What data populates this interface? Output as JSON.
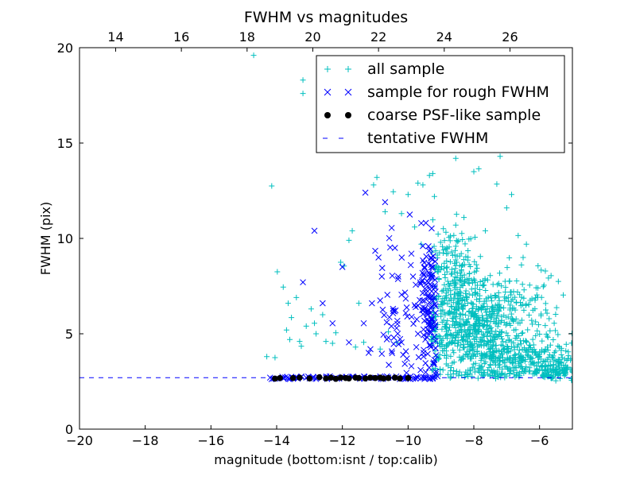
{
  "chart_data": {
    "type": "scatter",
    "title": "FWHM vs magnitudes",
    "xlabel": "magnitude (bottom:isnt / top:calib)",
    "ylabel": "FWHM (pix)",
    "xlim": [
      -20,
      -5
    ],
    "ylim": [
      0,
      20
    ],
    "x_ticks": [
      -20,
      -18,
      -16,
      -14,
      -12,
      -10,
      -8,
      -6
    ],
    "x_tick_labels": [
      "−20",
      "−18",
      "−16",
      "−14",
      "−12",
      "−10",
      "−8",
      "−6"
    ],
    "y_ticks": [
      0,
      5,
      10,
      15,
      20
    ],
    "y_tick_labels": [
      "0",
      "5",
      "10",
      "15",
      "20"
    ],
    "top_axis": {
      "xlim": [
        12.9,
        27.9
      ],
      "ticks": [
        14,
        16,
        18,
        20,
        22,
        24,
        26
      ],
      "tick_labels": [
        "14",
        "16",
        "18",
        "20",
        "22",
        "24",
        "26"
      ]
    },
    "grid": false,
    "legend_position": "top-right",
    "series": [
      {
        "name": "all sample",
        "marker": "plus",
        "color": "#00bfbf",
        "points": [
          [
            -14.7,
            19.6
          ],
          [
            -14.15,
            12.75
          ],
          [
            -13.2,
            18.3
          ],
          [
            -13.2,
            17.6
          ],
          [
            -13.98,
            8.25
          ],
          [
            -13.8,
            7.45
          ],
          [
            -13.65,
            6.6
          ],
          [
            -13.55,
            5.85
          ],
          [
            -13.7,
            5.2
          ],
          [
            -13.6,
            4.7
          ],
          [
            -13.4,
            6.9
          ],
          [
            -13.3,
            4.6
          ],
          [
            -13.25,
            4.35
          ],
          [
            -13.1,
            5.4
          ],
          [
            -12.95,
            6.3
          ],
          [
            -12.85,
            5.55
          ],
          [
            -12.6,
            6.0
          ],
          [
            -12.5,
            4.6
          ],
          [
            -12.2,
            5.05
          ],
          [
            -14.05,
            3.75
          ],
          [
            -14.3,
            3.8
          ],
          [
            -11.5,
            6.6
          ],
          [
            -11.35,
            4.55
          ],
          [
            -11.05,
            12.8
          ],
          [
            -10.95,
            13.2
          ],
          [
            -10.7,
            11.4
          ],
          [
            -10.45,
            12.45
          ],
          [
            -10.2,
            11.3
          ],
          [
            -10.0,
            12.3
          ],
          [
            -9.7,
            12.9
          ],
          [
            -9.55,
            12.8
          ],
          [
            -9.35,
            13.3
          ],
          [
            -9.25,
            13.4
          ],
          [
            -9.2,
            12.2
          ],
          [
            -9.8,
            10.6
          ],
          [
            -9.6,
            9.7
          ],
          [
            -11.7,
            10.4
          ],
          [
            -11.8,
            9.9
          ],
          [
            -11.95,
            8.55
          ],
          [
            -12.05,
            8.75
          ],
          [
            -10.6,
            5.1
          ],
          [
            -10.35,
            4.55
          ],
          [
            -12.3,
            4.5
          ],
          [
            -12.8,
            5.0
          ],
          [
            -11.6,
            4.3
          ],
          [
            -10.85,
            4.2
          ],
          [
            -7.6,
            18.2
          ],
          [
            -7.45,
            15.2
          ],
          [
            -7.2,
            14.3
          ],
          [
            -6.85,
            12.3
          ],
          [
            -7.85,
            13.65
          ],
          [
            -7.0,
            11.6
          ],
          [
            -6.65,
            10.15
          ],
          [
            -8.55,
            14.2
          ],
          [
            -8.0,
            13.5
          ],
          [
            -7.3,
            12.85
          ],
          [
            -6.3,
            7.55
          ],
          [
            -6.4,
            9.7
          ],
          [
            -6.05,
            7.4
          ],
          [
            -5.4,
            4.3
          ],
          [
            -5.2,
            4.1
          ],
          [
            -5.05,
            3.7
          ],
          [
            -5.6,
            3.75
          ],
          [
            -6.5,
            9.0
          ],
          [
            -8.3,
            11.1
          ],
          [
            -7.65,
            10.4
          ],
          [
            -8.9,
            8.7
          ],
          [
            -8.75,
            9.55
          ],
          [
            -8.55,
            10.7
          ],
          [
            -7.5,
            8.05
          ],
          [
            -7.8,
            9.05
          ],
          [
            -6.95,
            6.7
          ],
          [
            -6.7,
            4.9
          ]
        ],
        "dense_cluster_note": "",
        "dense_clusters": [
          {
            "cx": -8.0,
            "cy": 4.8,
            "sx": 0.75,
            "sy": 1.4,
            "n": 480,
            "seed": 11
          },
          {
            "cx": -6.7,
            "cy": 3.6,
            "sx": 0.95,
            "sy": 0.6,
            "n": 260,
            "seed": 23
          },
          {
            "cx": -8.7,
            "cy": 7.4,
            "sx": 0.35,
            "sy": 1.5,
            "n": 170,
            "seed": 37
          },
          {
            "cx": -7.1,
            "cy": 6.2,
            "sx": 0.8,
            "sy": 1.3,
            "n": 140,
            "seed": 41
          },
          {
            "cx": -5.6,
            "cy": 2.9,
            "sx": 0.4,
            "sy": 0.35,
            "n": 120,
            "seed": 53
          },
          {
            "cx": -7.5,
            "cy": 2.85,
            "sx": 1.0,
            "sy": 0.2,
            "n": 90,
            "seed": 61
          }
        ]
      },
      {
        "name": "sample for rough FWHM",
        "marker": "x",
        "color": "#0000ff",
        "points": [
          [
            -13.2,
            7.7
          ],
          [
            -12.85,
            10.4
          ],
          [
            -12.6,
            6.6
          ],
          [
            -12.3,
            5.55
          ],
          [
            -12.0,
            8.5
          ],
          [
            -11.8,
            4.55
          ],
          [
            -11.3,
            12.4
          ],
          [
            -11.35,
            5.55
          ],
          [
            -11.0,
            9.35
          ],
          [
            -11.2,
            4.0
          ],
          [
            -11.1,
            6.6
          ],
          [
            -10.9,
            9.0
          ],
          [
            -10.8,
            8.0
          ],
          [
            -10.85,
            6.75
          ],
          [
            -10.75,
            4.95
          ],
          [
            -10.8,
            3.95
          ],
          [
            -10.6,
            4.8
          ],
          [
            -10.65,
            5.6
          ],
          [
            -10.7,
            11.9
          ],
          [
            -10.5,
            10.55
          ],
          [
            -10.4,
            9.5
          ],
          [
            -10.3,
            8.0
          ],
          [
            -10.2,
            7.05
          ],
          [
            -10.45,
            6.2
          ],
          [
            -10.35,
            5.3
          ],
          [
            -10.2,
            4.55
          ],
          [
            -10.15,
            3.9
          ],
          [
            -9.95,
            11.25
          ],
          [
            -9.9,
            9.2
          ],
          [
            -9.85,
            8.0
          ],
          [
            -9.8,
            6.5
          ],
          [
            -9.7,
            5.0
          ],
          [
            -9.75,
            4.3
          ],
          [
            -9.6,
            10.8
          ],
          [
            -9.55,
            9.6
          ],
          [
            -9.5,
            8.5
          ],
          [
            -9.45,
            7.3
          ],
          [
            -9.4,
            6.0
          ],
          [
            -9.35,
            4.4
          ],
          [
            -9.3,
            9.0
          ],
          [
            -9.25,
            8.1
          ],
          [
            -9.2,
            6.9
          ],
          [
            -9.28,
            5.7
          ],
          [
            -9.22,
            3.5
          ],
          [
            -9.62,
            3.1
          ],
          [
            -9.9,
            3.3
          ],
          [
            -10.05,
            2.95
          ],
          [
            -12.9,
            2.7
          ],
          [
            -13.8,
            2.7
          ],
          [
            -13.5,
            2.7
          ],
          [
            -13.1,
            2.7
          ],
          [
            -12.5,
            2.7
          ],
          [
            -12.2,
            2.7
          ],
          [
            -11.7,
            2.7
          ],
          [
            -11.4,
            2.7
          ],
          [
            -11.0,
            2.7
          ],
          [
            -10.6,
            2.7
          ],
          [
            -10.3,
            2.7
          ],
          [
            -10.0,
            2.7
          ],
          [
            -9.7,
            2.7
          ],
          [
            -9.5,
            2.7
          ],
          [
            -9.35,
            2.7
          ],
          [
            -9.25,
            2.7
          ],
          [
            -14.2,
            2.7
          ]
        ],
        "dense_clusters": [
          {
            "cx": -9.35,
            "cy": 6.4,
            "sx": 0.22,
            "sy": 1.8,
            "n": 110,
            "seed": 71
          },
          {
            "cx": -10.3,
            "cy": 6.2,
            "sx": 0.4,
            "sy": 2.0,
            "n": 45,
            "seed": 83
          }
        ]
      },
      {
        "name": "coarse PSF-like sample",
        "marker": "circle",
        "color": "#000000",
        "points": [
          [
            -14.05,
            2.65
          ],
          [
            -13.9,
            2.68
          ],
          [
            -13.5,
            2.68
          ],
          [
            -13.3,
            2.7
          ],
          [
            -13.0,
            2.66
          ],
          [
            -12.7,
            2.72
          ],
          [
            -12.5,
            2.66
          ],
          [
            -12.35,
            2.7
          ],
          [
            -12.2,
            2.64
          ],
          [
            -12.05,
            2.7
          ],
          [
            -11.9,
            2.68
          ],
          [
            -11.8,
            2.66
          ],
          [
            -11.6,
            2.7
          ],
          [
            -11.5,
            2.68
          ],
          [
            -11.3,
            2.66
          ],
          [
            -11.15,
            2.7
          ],
          [
            -11.0,
            2.68
          ],
          [
            -10.85,
            2.7
          ],
          [
            -10.75,
            2.66
          ],
          [
            -10.6,
            2.68
          ],
          [
            -10.4,
            2.7
          ],
          [
            -10.25,
            2.66
          ],
          [
            -10.0,
            2.68
          ]
        ]
      },
      {
        "name": "tentative FWHM",
        "marker": "dashed-line",
        "color": "#0000ff",
        "y": 2.7
      }
    ]
  }
}
